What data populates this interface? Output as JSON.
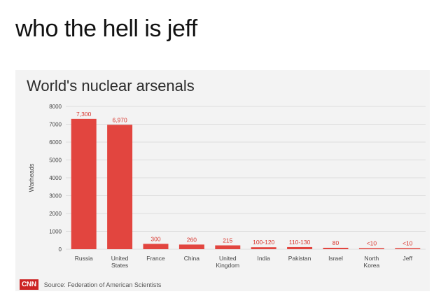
{
  "caption": "who the hell is jeff",
  "colors": {
    "bar": "#e2453f",
    "grid": "#dddddd",
    "background": "#f3f3f3",
    "brand": "#cc2424"
  },
  "footer": {
    "logo": "CNN",
    "source": "Source: Federation of American Scientists"
  },
  "chart_data": {
    "type": "bar",
    "title": "World's nuclear arsenals",
    "ylabel": "Warheads",
    "xlabel": "",
    "ylim": [
      0,
      8000
    ],
    "yticks": [
      0,
      1000,
      2000,
      3000,
      4000,
      5000,
      6000,
      7000,
      8000
    ],
    "grid": true,
    "categories": [
      [
        "Russia"
      ],
      [
        "United",
        "States"
      ],
      [
        "France"
      ],
      [
        "China"
      ],
      [
        "United",
        "Kingdom"
      ],
      [
        "India"
      ],
      [
        "Pakistan"
      ],
      [
        "Israel"
      ],
      [
        "North",
        "Korea"
      ],
      [
        "Jeff"
      ]
    ],
    "values": [
      7300,
      6970,
      300,
      260,
      215,
      110,
      120,
      80,
      10,
      10
    ],
    "data_labels": [
      "7,300",
      "6,970",
      "300",
      "260",
      "215",
      "100-120",
      "110-130",
      "80",
      "<10",
      "<10"
    ]
  }
}
